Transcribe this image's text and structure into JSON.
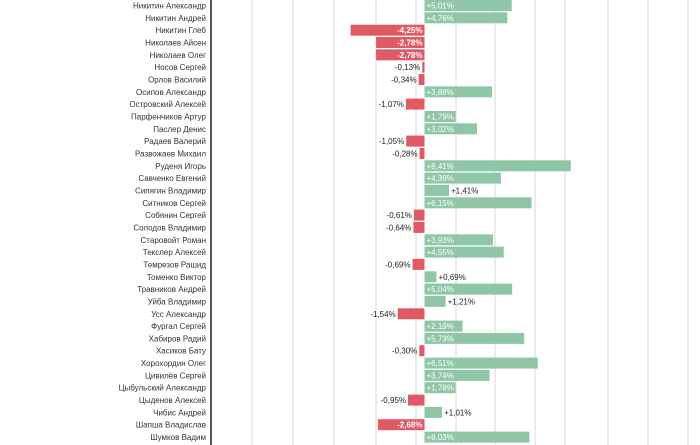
{
  "chart_data": {
    "type": "bar",
    "orientation": "horizontal",
    "title": "",
    "xlabel": "",
    "ylabel": "",
    "xlim": [
      -12,
      14
    ],
    "grid": true,
    "value_suffix": "%",
    "colors": {
      "positive": "#8fc7a6",
      "negative": "#e05a66",
      "axis": "#222222",
      "grid": "#d9d9d9"
    },
    "categories": [
      "Никитин Александр",
      "Никитин Андрей",
      "Никитин Глеб",
      "Николаев Айсен",
      "Николаев Олег",
      "Носов Сергей",
      "Орлов Василий",
      "Осипов Александр",
      "Островский Алексей",
      "Парфенчиков Артур",
      "Паслер Денис",
      "Радаев Валерий",
      "Развожаев Михаил",
      "Руденя Игорь",
      "Савченко Евгений",
      "Сипягин Владимир",
      "Ситников Сергей",
      "Собянин Сергей",
      "Солодов Владимир",
      "Старовойт Роман",
      "Текслер Алексей",
      "Темрезов Рашид",
      "Томенко Виктор",
      "Травников Андрей",
      "Уйба Владимир",
      "Усс Александр",
      "Фургал Сергей",
      "Хабиров Радий",
      "Хасиков Бату",
      "Хорохордин Олег",
      "Цивилёв Сергей",
      "Цыбульский Александр",
      "Цыденов Алексей",
      "Чибис Андрей",
      "Шапша Владислав",
      "Шумков Вадим"
    ],
    "values": [
      5.01,
      4.76,
      -4.25,
      -2.78,
      -2.78,
      -0.13,
      -0.34,
      3.88,
      -1.07,
      1.79,
      3.02,
      -1.05,
      -0.28,
      8.41,
      4.39,
      1.41,
      6.15,
      -0.61,
      -0.64,
      3.93,
      4.55,
      -0.69,
      0.69,
      5.04,
      1.21,
      -1.54,
      2.19,
      5.73,
      -0.3,
      6.51,
      3.74,
      1.78,
      -0.95,
      1.01,
      -2.68,
      6.03
    ],
    "labels": [
      "+5,01%",
      "+4,76%",
      "-4,25%",
      "-2,78%",
      "-2,78%",
      "-0,13%",
      "-0,34%",
      "+3,88%",
      "-1,07%",
      "+1,79%",
      "+3,02%",
      "-1,05%",
      "-0,28%",
      "+8,41%",
      "+4,39%",
      "+1,41%",
      "+6,15%",
      "-0,61%",
      "-0,64%",
      "+3,93%",
      "+4,55%",
      "-0,69%",
      "+0,69%",
      "+5,04%",
      "+1,21%",
      "-1,54%",
      "+2,19%",
      "+5,73%",
      "-0,30%",
      "+6,51%",
      "+3,74%",
      "+1,78%",
      "-0,95%",
      "+1,01%",
      "-2,68%",
      "+6,03%"
    ]
  }
}
